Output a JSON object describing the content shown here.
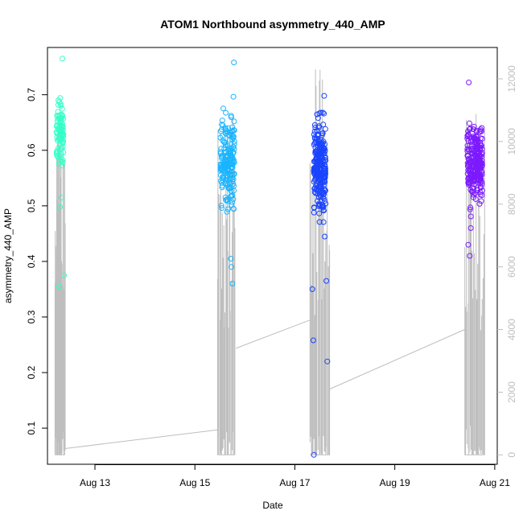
{
  "chart_data": {
    "type": "scatter",
    "title": "ATOM1 Northbound asymmetry_440_AMP",
    "xlabel": "Date",
    "ylabel": "asymmetry_440_AMP",
    "x_axis": {
      "unit": "days in August",
      "range": [
        12.05,
        21.05
      ],
      "ticks": [
        13,
        15,
        17,
        19,
        21
      ],
      "tick_labels": [
        "Aug 13",
        "Aug 15",
        "Aug 17",
        "Aug 19",
        "Aug 21"
      ]
    },
    "y_axis_left": {
      "range": [
        0.035,
        0.785
      ],
      "ticks": [
        0.1,
        0.2,
        0.3,
        0.4,
        0.5,
        0.6,
        0.7
      ],
      "tick_labels": [
        "0.1",
        "0.2",
        "0.3",
        "0.4",
        "0.5",
        "0.6",
        "0.7"
      ]
    },
    "y_axis_right": {
      "range": [
        -300,
        13000
      ],
      "ticks": [
        0,
        2000,
        4000,
        6000,
        8000,
        10000,
        12000
      ],
      "tick_labels": [
        "0",
        "2000",
        "4000",
        "6000",
        "8000",
        "10000",
        "12000"
      ],
      "color": "#bebebe"
    },
    "grid": false,
    "legend": "none",
    "series": [
      {
        "marker": "open-circle",
        "colors_by_group": [
          "#33ffc8",
          "#1ab4ff",
          "#1a44ff",
          "#7c1aff"
        ],
        "groups": [
          {
            "x_center": 12.3,
            "x_spread": 0.07,
            "y_center": 0.635,
            "y_spread": 0.05,
            "count": 90,
            "outliers": [
              [
                12.35,
                0.765
              ],
              [
                12.28,
                0.355
              ],
              [
                12.38,
                0.375
              ],
              [
                12.33,
                0.515
              ],
              [
                12.3,
                0.498
              ]
            ]
          },
          {
            "x_center": 15.65,
            "x_spread": 0.14,
            "y_center": 0.58,
            "y_spread": 0.075,
            "count": 180,
            "outliers": [
              [
                15.78,
                0.758
              ],
              [
                15.75,
                0.36
              ],
              [
                15.73,
                0.39
              ],
              [
                15.72,
                0.405
              ]
            ]
          },
          {
            "x_center": 17.5,
            "x_spread": 0.12,
            "y_center": 0.57,
            "y_spread": 0.08,
            "count": 260,
            "outliers": [
              [
                17.38,
                0.052
              ],
              [
                17.37,
                0.258
              ],
              [
                17.65,
                0.22
              ],
              [
                17.35,
                0.35
              ],
              [
                17.63,
                0.365
              ]
            ]
          },
          {
            "x_center": 20.6,
            "x_spread": 0.15,
            "y_center": 0.575,
            "y_spread": 0.06,
            "count": 260,
            "outliers": [
              [
                20.48,
                0.722
              ],
              [
                20.5,
                0.41
              ],
              [
                20.47,
                0.43
              ],
              [
                20.52,
                0.46
              ]
            ]
          }
        ]
      },
      {
        "name_axis": "right",
        "line_color": "#bebebe",
        "description_points": [
          [
            12.25,
            0
          ],
          [
            12.33,
            11000
          ],
          [
            12.38,
            200
          ],
          [
            15.45,
            700
          ],
          [
            15.5,
            11500
          ],
          [
            15.8,
            3400
          ],
          [
            17.3,
            4300
          ],
          [
            17.45,
            11500
          ],
          [
            17.7,
            2100
          ],
          [
            20.4,
            4000
          ],
          [
            20.55,
            11000
          ],
          [
            20.8,
            400
          ]
        ],
        "bursts": [
          {
            "x_start": 12.2,
            "x_end": 12.4,
            "y_top": 11000
          },
          {
            "x_start": 15.45,
            "x_end": 15.8,
            "y_top": 11500
          },
          {
            "x_start": 17.3,
            "x_end": 17.7,
            "y_top": 12700
          },
          {
            "x_start": 20.4,
            "x_end": 20.8,
            "y_top": 11000
          }
        ],
        "connectors": [
          [
            [
              12.4,
              200
            ],
            [
              15.45,
              800
            ]
          ],
          [
            [
              15.82,
              3400
            ],
            [
              17.3,
              4300
            ]
          ],
          [
            [
              17.7,
              2100
            ],
            [
              20.4,
              4000
            ]
          ]
        ]
      }
    ]
  }
}
